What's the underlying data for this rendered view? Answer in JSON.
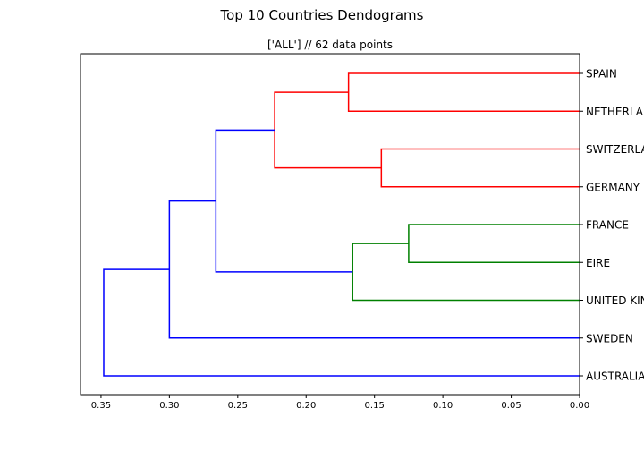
{
  "chart_data": {
    "type": "dendrogram",
    "title": "Top 10 Countries Dendograms",
    "subtitle": "['ALL'] // 62 data points",
    "orientation": "left",
    "xlim": [
      0.365,
      0.0
    ],
    "x_ticks": [
      {
        "value": 0.35,
        "label": "0.35"
      },
      {
        "value": 0.3,
        "label": "0.30"
      },
      {
        "value": 0.25,
        "label": "0.25"
      },
      {
        "value": 0.2,
        "label": "0.20"
      },
      {
        "value": 0.15,
        "label": "0.15"
      },
      {
        "value": 0.1,
        "label": "0.10"
      },
      {
        "value": 0.05,
        "label": "0.05"
      },
      {
        "value": 0.0,
        "label": "0.00"
      }
    ],
    "leaves": [
      "SPAIN",
      "NETHERLANDS",
      "SWITZERLAND",
      "GERMANY",
      "FRANCE",
      "EIRE",
      "UNITED KINGDOM",
      "SWEDEN",
      "AUSTRALIA"
    ],
    "merges": [
      {
        "id": "m1",
        "a": "SPAIN",
        "b": "NETHERLANDS",
        "distance": 0.169,
        "color": "#ff0000"
      },
      {
        "id": "m2",
        "a": "SWITZERLAND",
        "b": "GERMANY",
        "distance": 0.145,
        "color": "#ff0000"
      },
      {
        "id": "m3",
        "a": "m1",
        "b": "m2",
        "distance": 0.223,
        "color": "#ff0000"
      },
      {
        "id": "m4",
        "a": "FRANCE",
        "b": "EIRE",
        "distance": 0.125,
        "color": "#008000"
      },
      {
        "id": "m5",
        "a": "m4",
        "b": "UNITED KINGDOM",
        "distance": 0.166,
        "color": "#008000"
      },
      {
        "id": "m6",
        "a": "m3",
        "b": "m5",
        "distance": 0.266,
        "color": "#0000ff"
      },
      {
        "id": "m7",
        "a": "m6",
        "b": "SWEDEN",
        "distance": 0.3,
        "color": "#0000ff"
      },
      {
        "id": "m8",
        "a": "m7",
        "b": "AUSTRALIA",
        "distance": 0.348,
        "color": "#0000ff"
      }
    ],
    "grid": false,
    "legend": "none"
  }
}
